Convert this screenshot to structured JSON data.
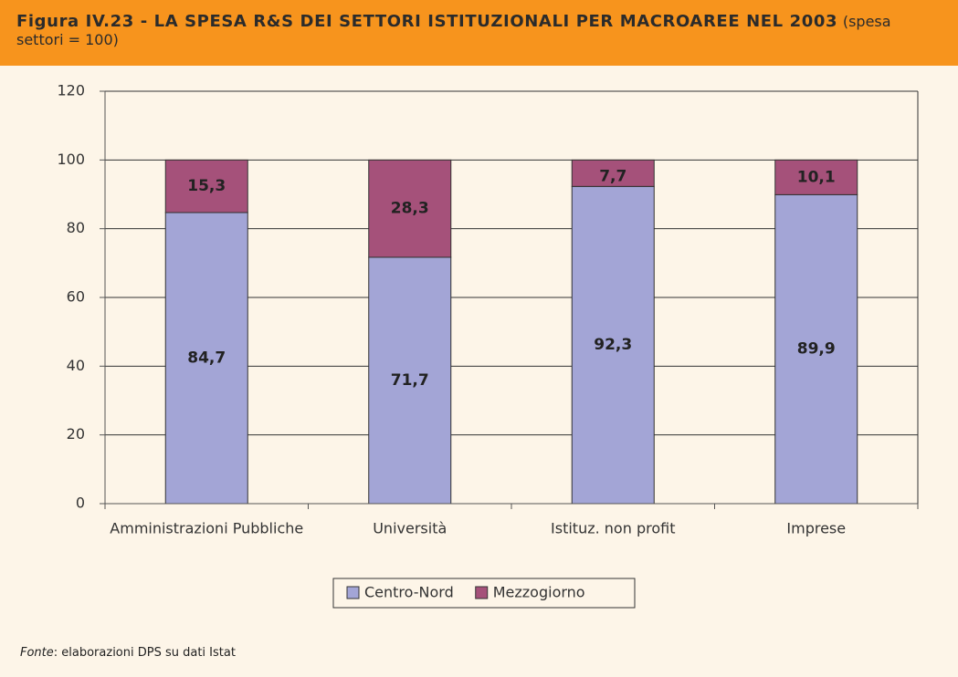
{
  "chart_data": {
    "type": "stacked_bar",
    "title": "Figura IV.23 - LA SPESA R&S DEI SETTORI ISTITUZIONALI PER MACROAREE NEL 2003",
    "subtitle": "(spesa settori = 100)",
    "categories": [
      "Amministrazioni Pubbliche",
      "Università",
      "Istituz. non profit",
      "Imprese"
    ],
    "series": [
      {
        "name": "Centro-Nord",
        "color": "#a3a5d6",
        "values": [
          84.7,
          71.7,
          92.3,
          89.9
        ],
        "value_labels": [
          "84,7",
          "71,7",
          "92,3",
          "89,9"
        ]
      },
      {
        "name": "Mezzogiorno",
        "color": "#a5517a",
        "values": [
          15.3,
          28.3,
          7.7,
          10.1
        ],
        "value_labels": [
          "15,3",
          "28,3",
          "7,7",
          "10,1"
        ]
      }
    ],
    "ylim": [
      0,
      120
    ],
    "yticks": [
      0,
      20,
      40,
      60,
      80,
      100,
      120
    ],
    "grid": true,
    "source": {
      "label": "Fonte",
      "text": ": elaborazioni DPS su dati Istat"
    }
  }
}
